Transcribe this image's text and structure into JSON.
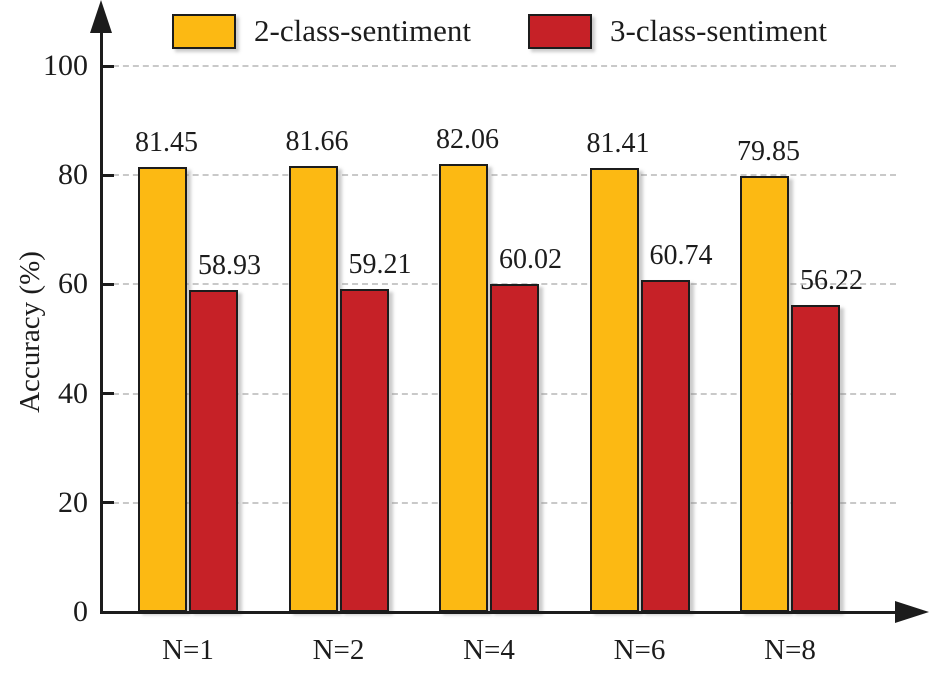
{
  "chart_data": {
    "type": "bar",
    "title": "",
    "categories": [
      "N=1",
      "N=2",
      "N=4",
      "N=6",
      "N=8"
    ],
    "series": [
      {
        "name": "2-class-sentiment",
        "color": "#FCB913",
        "values": [
          81.45,
          81.66,
          82.06,
          81.41,
          79.85
        ]
      },
      {
        "name": "3-class-sentiment",
        "color": "#C62127",
        "values": [
          58.93,
          59.21,
          60.02,
          60.74,
          56.22
        ]
      }
    ],
    "xlabel": "",
    "ylabel": "Accuracy (%)",
    "ylim": [
      0,
      110
    ],
    "yticks": [
      0,
      20,
      40,
      60,
      80,
      100
    ],
    "grid": "horizontal dashed",
    "legend_position": "top",
    "bar_outline_color": "#1c1c1c",
    "gridline_color": "#c9c9c9",
    "value_labels_shown": true
  }
}
